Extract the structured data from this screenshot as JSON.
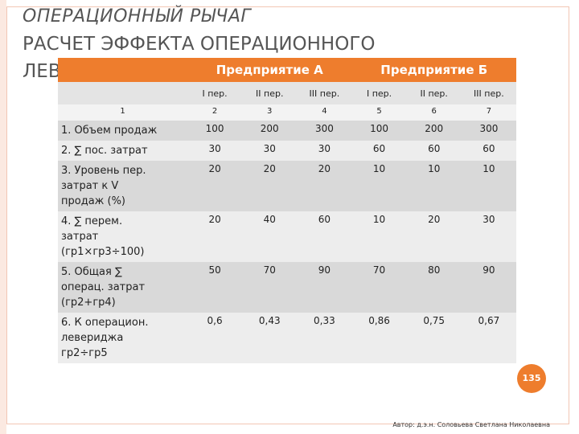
{
  "header": {
    "title": "ОПЕРАЦИОННЫЙ РЫЧАГ",
    "subtitle": "РАСЧЕТ ЭФФЕКТА ОПЕРАЦИОННОГО ЛЕВЕРИДЖА"
  },
  "table": {
    "groups": [
      "Предприятие А",
      "Предприятие Б"
    ],
    "periods": [
      "I пер.",
      "II пер.",
      "III пер.",
      "I пер.",
      "II пер.",
      "III пер."
    ],
    "numbers": [
      "1",
      "2",
      "3",
      "4",
      "5",
      "6",
      "7"
    ],
    "rows": [
      [
        "1. Объем продаж",
        "100",
        "200",
        "300",
        "100",
        "200",
        "300"
      ],
      [
        "2. ∑ пос. затрат",
        "30",
        "30",
        "30",
        "60",
        "60",
        "60"
      ],
      [
        "3. Уровень пер.\nзатрат к V\nпродаж (%)",
        "20",
        "20",
        "20",
        "10",
        "10",
        "10"
      ],
      [
        "4. ∑ перем.\nзатрат\n(гр1×гр3÷100)",
        "20",
        "40",
        "60",
        "10",
        "20",
        "30"
      ],
      [
        "5. Общая ∑\nоперац. затрат\n(гр2+гр4)",
        "50",
        "70",
        "90",
        "70",
        "80",
        "90"
      ],
      [
        "6. К операцион.\nлевериджа\nгр2÷гр5",
        "0,6",
        "0,43",
        "0,33",
        "0,86",
        "0,75",
        "0,67"
      ]
    ]
  },
  "footer": {
    "page": "135",
    "author": "Автор: д.э.н. Соловьева Светлана Николаевна"
  }
}
